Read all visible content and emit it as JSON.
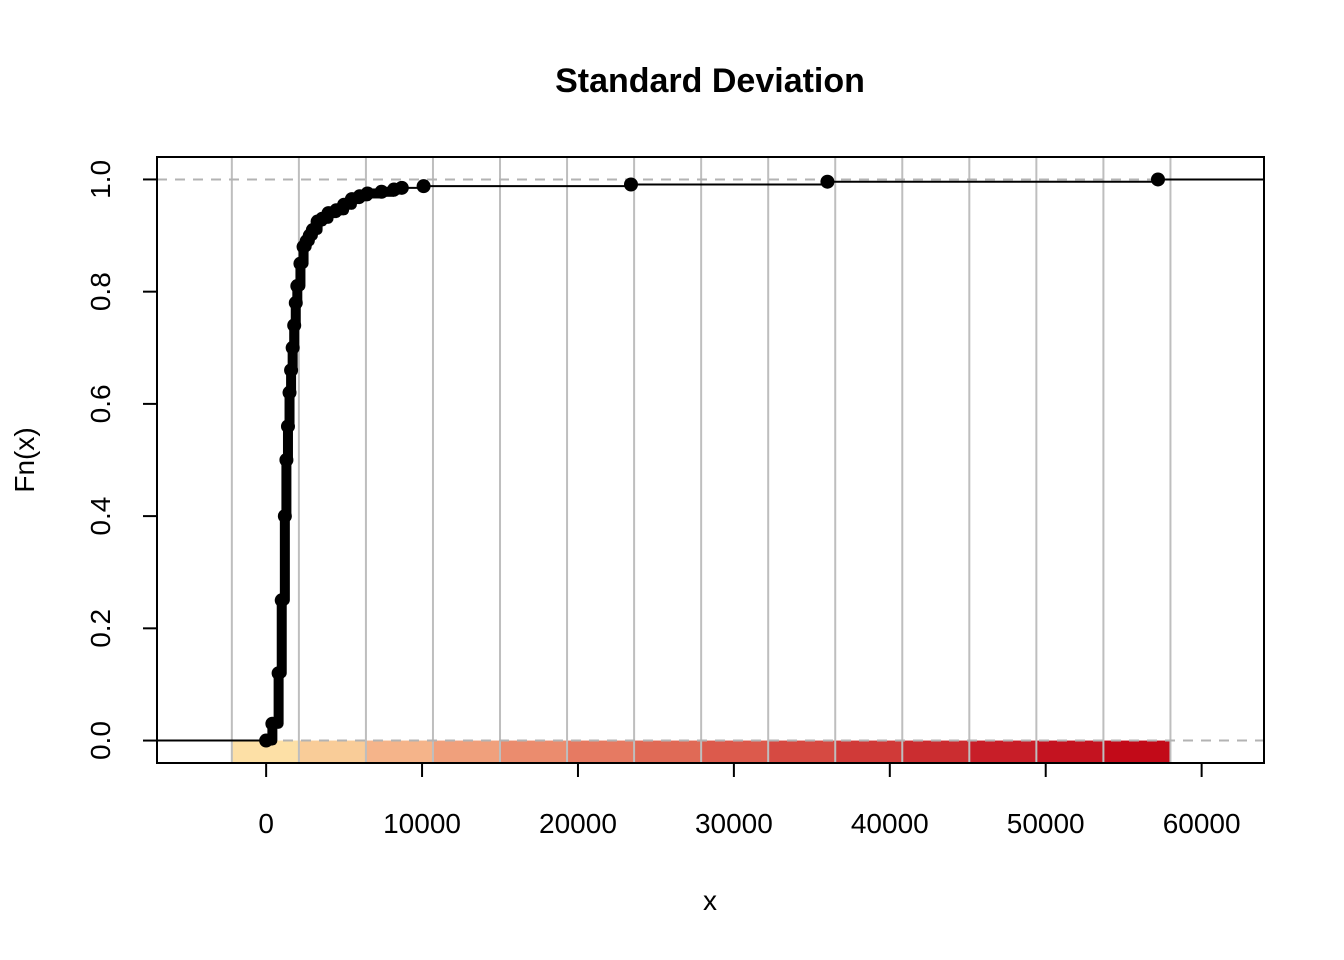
{
  "chart_data": {
    "type": "line",
    "subtype": "ecdf-step",
    "title": "Standard Deviation",
    "xlabel": "x",
    "ylabel": "Fn(x)",
    "xlim": [
      -7000,
      64000
    ],
    "ylim": [
      -0.04,
      1.04
    ],
    "x_ticks": [
      0,
      10000,
      20000,
      30000,
      40000,
      50000,
      60000
    ],
    "x_tick_labels": [
      "0",
      "10000",
      "20000",
      "30000",
      "40000",
      "50000",
      "60000"
    ],
    "y_ticks": [
      0.0,
      0.2,
      0.4,
      0.6,
      0.8,
      1.0
    ],
    "y_tick_labels": [
      "0.0",
      "0.2",
      "0.4",
      "0.6",
      "0.8",
      "1.0"
    ],
    "reference_lines_y": [
      0,
      1
    ],
    "grid": "vertical",
    "vertical_gridlines_x": [
      -2200,
      2100,
      6400,
      10700,
      15000,
      19300,
      23600,
      27900,
      32200,
      36500,
      40800,
      45100,
      49400,
      53700,
      58000
    ],
    "color_bands": {
      "breaks": [
        -2200,
        2100,
        6400,
        10700,
        15000,
        19300,
        23600,
        27900,
        32200,
        36500,
        40800,
        45100,
        49400,
        53700,
        58000
      ],
      "colors": [
        "#FDE0A6",
        "#F9CC98",
        "#F5B48A",
        "#F0A07C",
        "#EB8C6E",
        "#E67A62",
        "#E06A56",
        "#DC5A4C",
        "#D64A42",
        "#D03A38",
        "#CB2D30",
        "#C81E28",
        "#C41320",
        "#C20A18"
      ]
    },
    "series": [
      {
        "x": [
          0,
          400,
          800,
          1000,
          1200,
          1300,
          1400,
          1500,
          1600,
          1700,
          1800,
          1900,
          2000,
          2200,
          2400,
          2600,
          2800,
          3000,
          3300,
          3600,
          4000,
          4500,
          5000,
          5500,
          6000,
          6500,
          7400,
          8200,
          8700,
          10100,
          23400,
          36000,
          57200
        ],
        "y": [
          0.0,
          0.03,
          0.12,
          0.25,
          0.4,
          0.5,
          0.56,
          0.62,
          0.66,
          0.7,
          0.74,
          0.78,
          0.81,
          0.85,
          0.88,
          0.89,
          0.9,
          0.91,
          0.925,
          0.93,
          0.94,
          0.945,
          0.955,
          0.965,
          0.97,
          0.975,
          0.978,
          0.982,
          0.985,
          0.988,
          0.991,
          0.996,
          1.0
        ]
      }
    ]
  }
}
